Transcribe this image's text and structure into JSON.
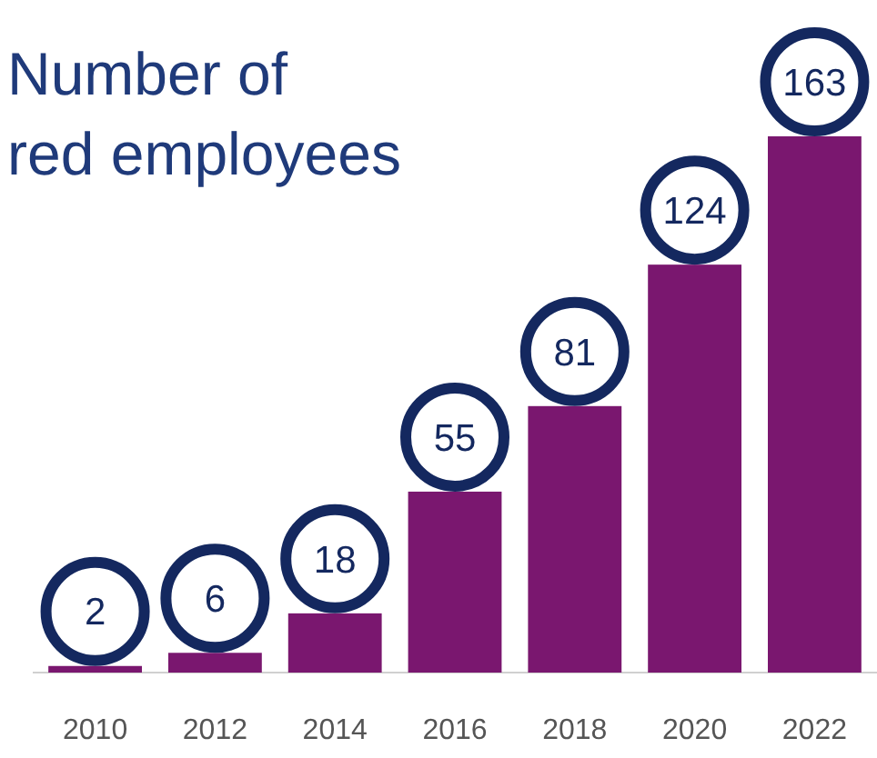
{
  "chart_data": {
    "type": "bar",
    "title": "Number of red employees",
    "categories": [
      "2010",
      "2012",
      "2014",
      "2016",
      "2018",
      "2020",
      "2022"
    ],
    "values": [
      2,
      6,
      18,
      55,
      81,
      124,
      163
    ],
    "color": "#7a176f",
    "data_labels": true
  }
}
